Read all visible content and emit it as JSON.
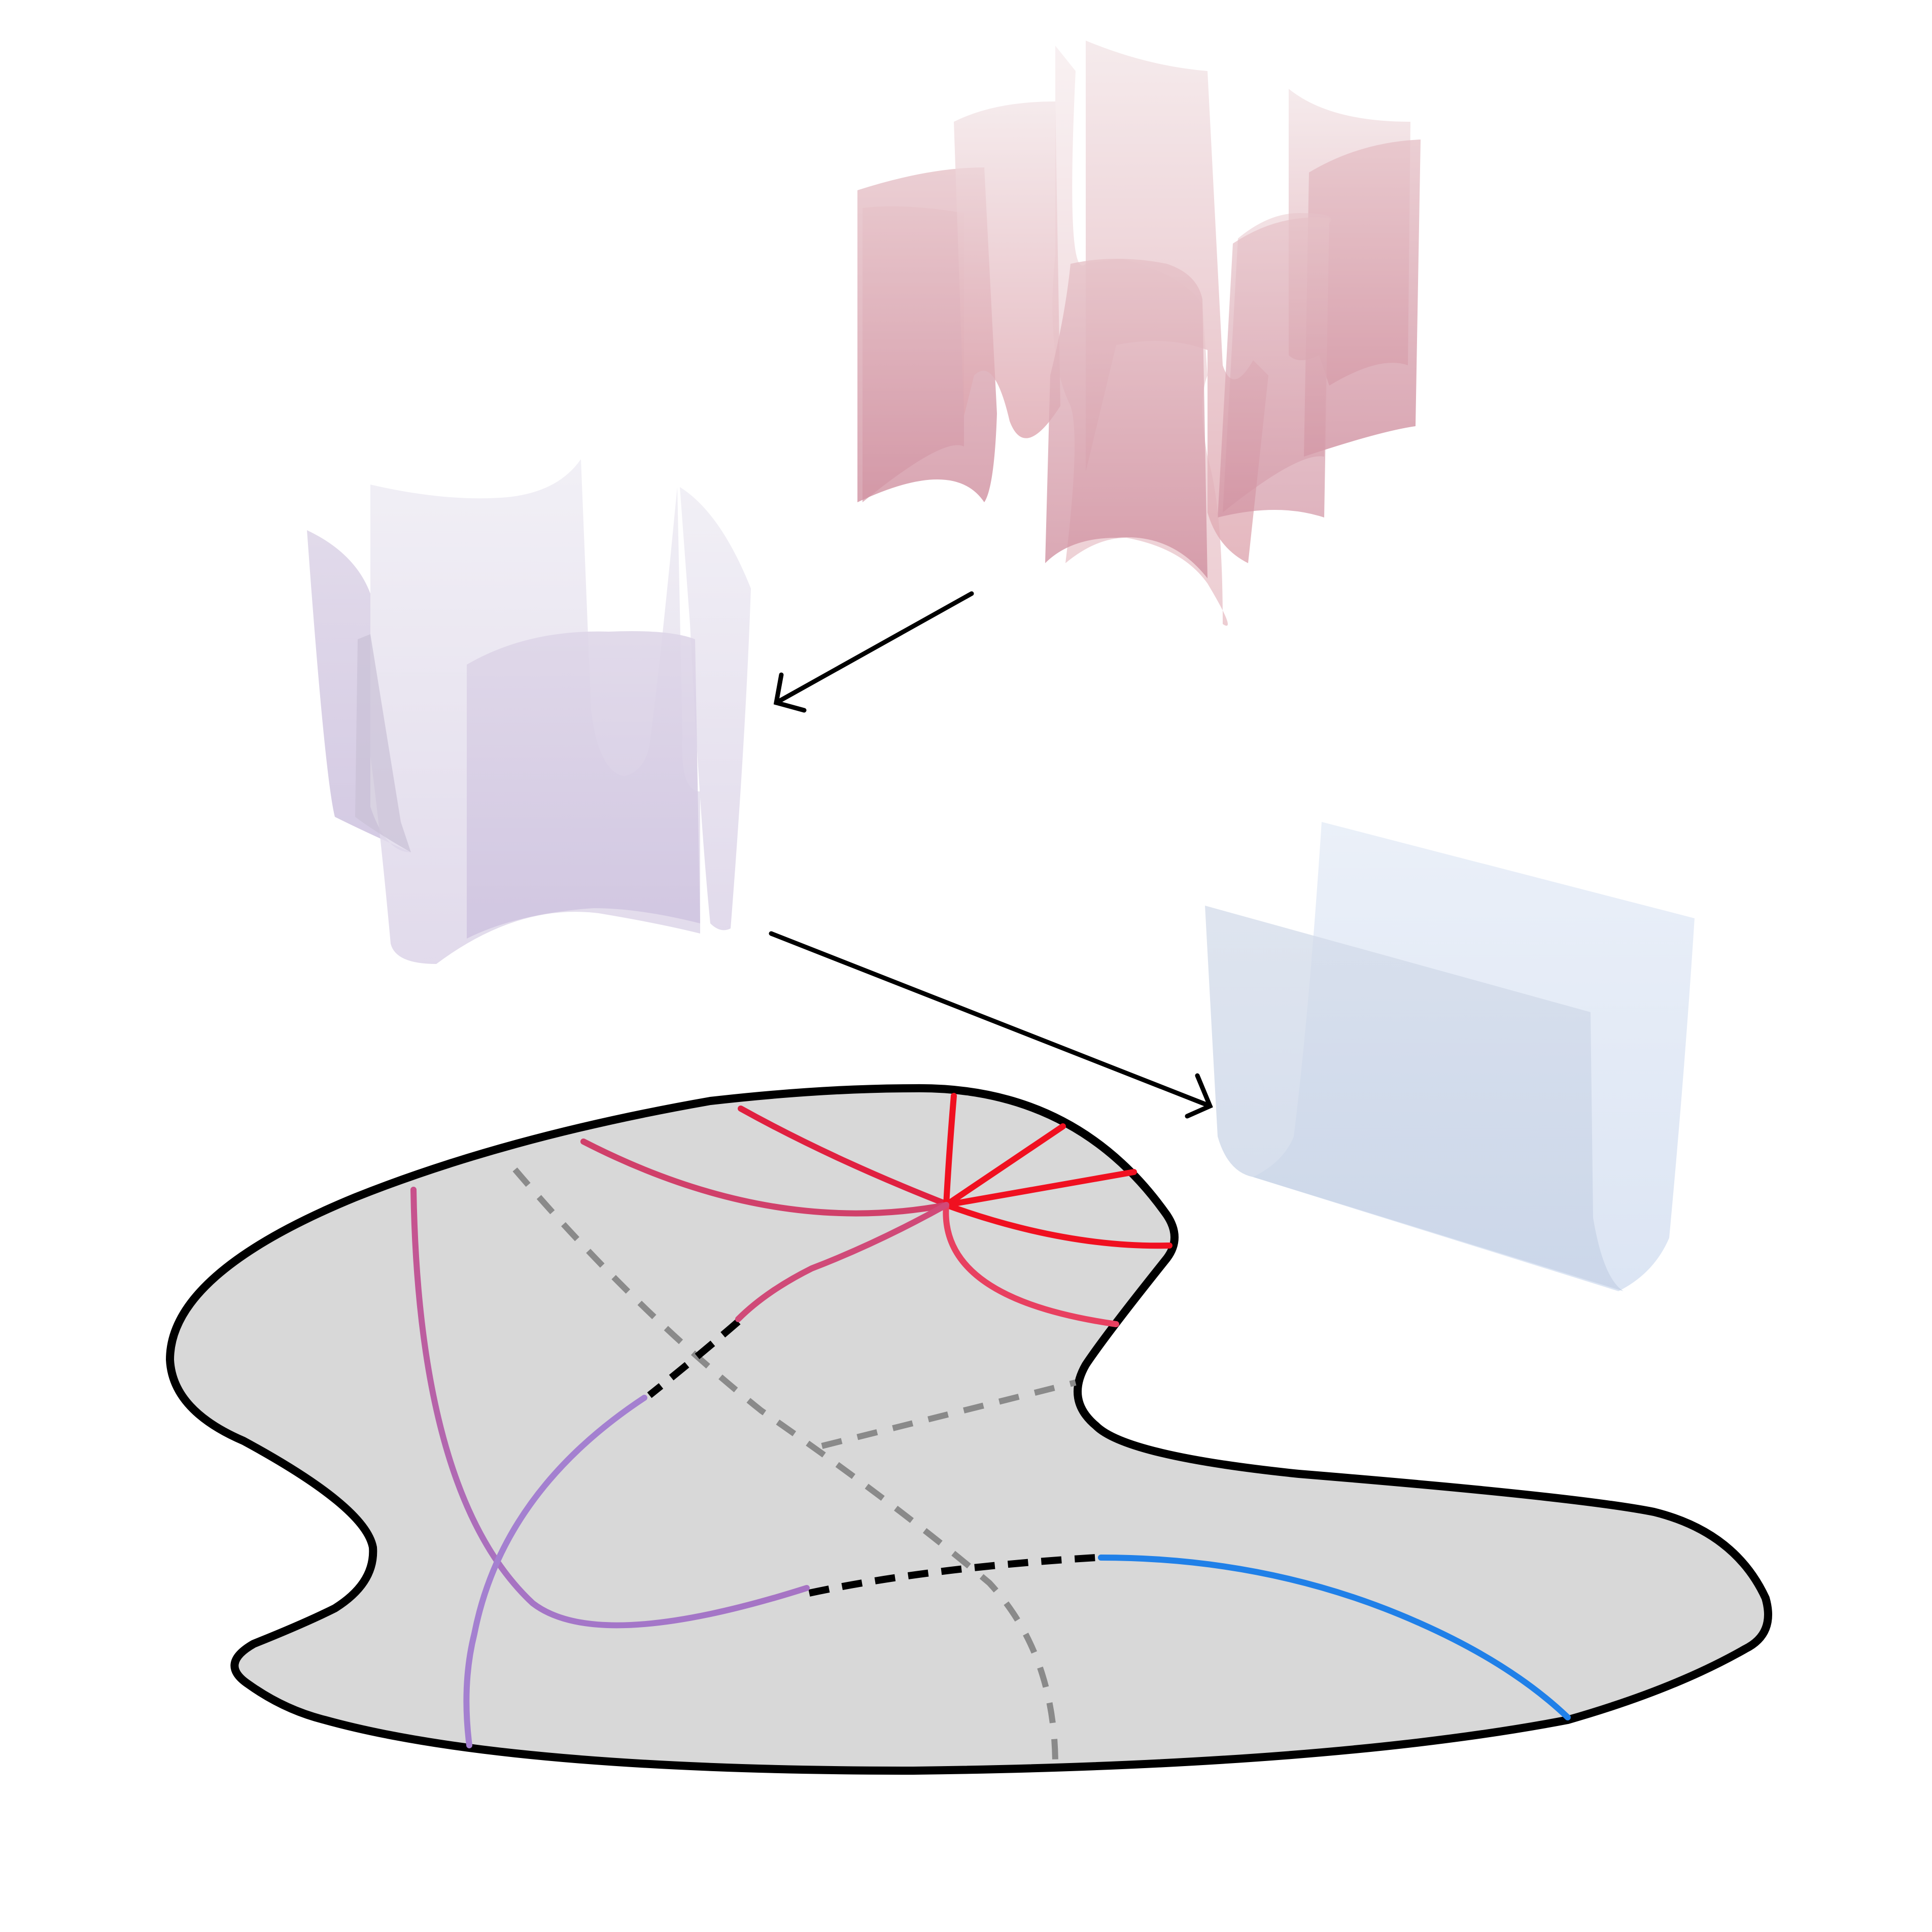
{
  "figure": {
    "colors": {
      "background": "#ffffff",
      "region_fill": "#d8d8d8",
      "outline": "#000000",
      "red": "#f01020",
      "crimson": "#d0406a",
      "violet": "#a080d0",
      "lavender": "#9a88d8",
      "blue": "#2080e8",
      "dash_grey": "#8a8a8a",
      "surface_red": "#e8b0b8",
      "surface_purple": "#d8d0e8",
      "surface_blue": "#d0dcee"
    },
    "surfaces": [
      {
        "name": "six-sheet-surface",
        "tint": "red"
      },
      {
        "name": "three-sheet-surface",
        "tint": "purple"
      },
      {
        "name": "two-sheet-surface",
        "tint": "blue"
      }
    ],
    "arrows": [
      "six-to-three",
      "three-to-two"
    ]
  }
}
